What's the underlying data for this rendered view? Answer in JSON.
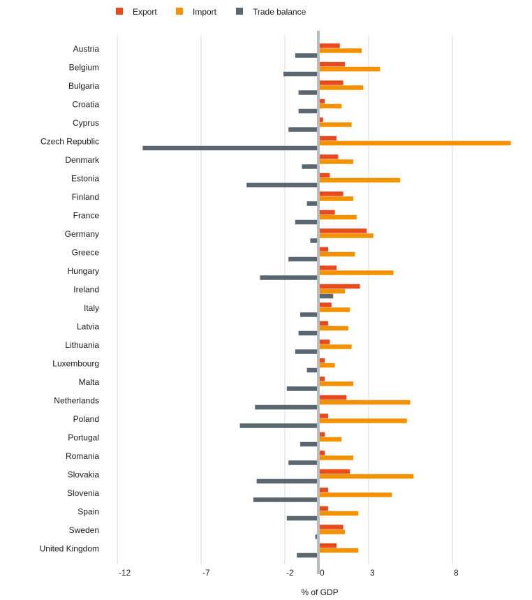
{
  "chart_data": {
    "type": "bar",
    "orientation": "horizontal",
    "categories": [
      "Austria",
      "Belgium",
      "Bulgaria",
      "Croatia",
      "Cyprus",
      "Czech Republic",
      "Denmark",
      "Estonia",
      "Finland",
      "France",
      "Germany",
      "Greece",
      "Hungary",
      "Ireland",
      "Italy",
      "Latvia",
      "Lithuania",
      "Luxembourg",
      "Malta",
      "Netherlands",
      "Poland",
      "Portugal",
      "Romania",
      "Slovakia",
      "Slovenia",
      "Spain",
      "Sweden",
      "United Kingdom"
    ],
    "series": [
      {
        "name": "Export",
        "color": "#e84a1e",
        "values": [
          1.2,
          1.5,
          1.4,
          0.3,
          0.2,
          1.0,
          1.1,
          0.6,
          1.4,
          0.9,
          2.8,
          0.5,
          1.0,
          2.4,
          0.7,
          0.5,
          0.6,
          0.3,
          0.3,
          1.6,
          0.5,
          0.3,
          0.3,
          1.8,
          0.5,
          0.5,
          1.4,
          1.0
        ]
      },
      {
        "name": "Import",
        "color": "#f39200",
        "values": [
          2.5,
          3.6,
          2.6,
          1.3,
          1.9,
          11.4,
          2.0,
          4.8,
          2.0,
          2.2,
          3.2,
          2.1,
          4.4,
          1.5,
          1.8,
          1.7,
          1.9,
          0.9,
          2.0,
          5.4,
          5.2,
          1.3,
          2.0,
          5.6,
          4.3,
          2.3,
          1.5,
          2.3
        ]
      },
      {
        "name": "Trade balance",
        "color": "#5b6770",
        "values": [
          -1.3,
          -2.0,
          -1.1,
          -1.1,
          -1.7,
          -10.4,
          -0.9,
          -4.2,
          -0.6,
          -1.3,
          -0.4,
          -1.7,
          -3.4,
          0.8,
          -1.0,
          -1.1,
          -1.3,
          -0.6,
          -1.8,
          -3.7,
          -4.6,
          -1.0,
          -1.7,
          -3.6,
          -3.8,
          -1.8,
          -0.1,
          -1.2
        ]
      }
    ],
    "xlabel": "% of GDP",
    "xticks": [
      -12,
      -7,
      -2,
      0,
      3,
      8
    ],
    "xlim": [
      -12.5,
      11.6
    ],
    "grid": "vertical",
    "legend": "top-left"
  },
  "colors": {
    "grid": "#d9d9d9",
    "zero_line": "#b8bcbf"
  }
}
